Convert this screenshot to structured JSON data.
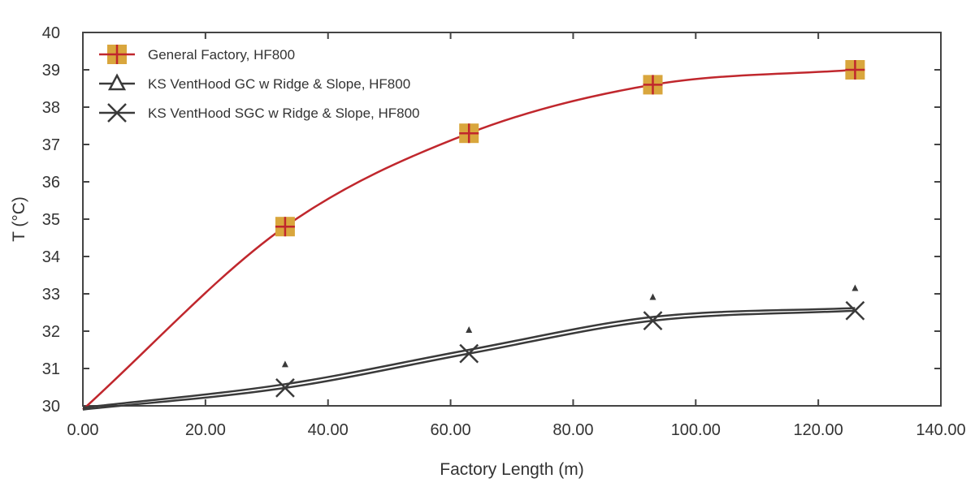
{
  "chart_data": {
    "type": "line",
    "title": "",
    "xlabel": "Factory Length (m)",
    "ylabel": "T (°C)",
    "xlim": [
      0,
      140
    ],
    "ylim": [
      30,
      40
    ],
    "x_ticks": [
      "0.00",
      "20.00",
      "40.00",
      "60.00",
      "80.00",
      "100.00",
      "120.00",
      "140.00"
    ],
    "y_ticks": [
      "30",
      "31",
      "32",
      "33",
      "34",
      "35",
      "36",
      "37",
      "38",
      "39",
      "40"
    ],
    "grid": false,
    "legend_position": "top-left",
    "series": [
      {
        "name": "General Factory, HF800",
        "color": "#c0272d",
        "marker": "square-plus",
        "marker_fill": "#d9a63d",
        "x": [
          0,
          33,
          63,
          93,
          126
        ],
        "y": [
          29.9,
          34.8,
          37.3,
          38.6,
          39.0
        ]
      },
      {
        "name": "KS VentHood GC w Ridge & Slope, HF800",
        "color": "#3a3a3a",
        "marker": "triangle",
        "x": [
          0,
          33,
          63,
          93,
          126
        ],
        "y": [
          29.95,
          30.58,
          31.5,
          32.38,
          32.62
        ]
      },
      {
        "name": "KS VentHood SGC w Ridge & Slope, HF800",
        "color": "#3a3a3a",
        "marker": "x",
        "x": [
          0,
          33,
          63,
          93,
          126
        ],
        "y": [
          29.9,
          30.48,
          31.4,
          32.28,
          32.55
        ]
      }
    ]
  }
}
